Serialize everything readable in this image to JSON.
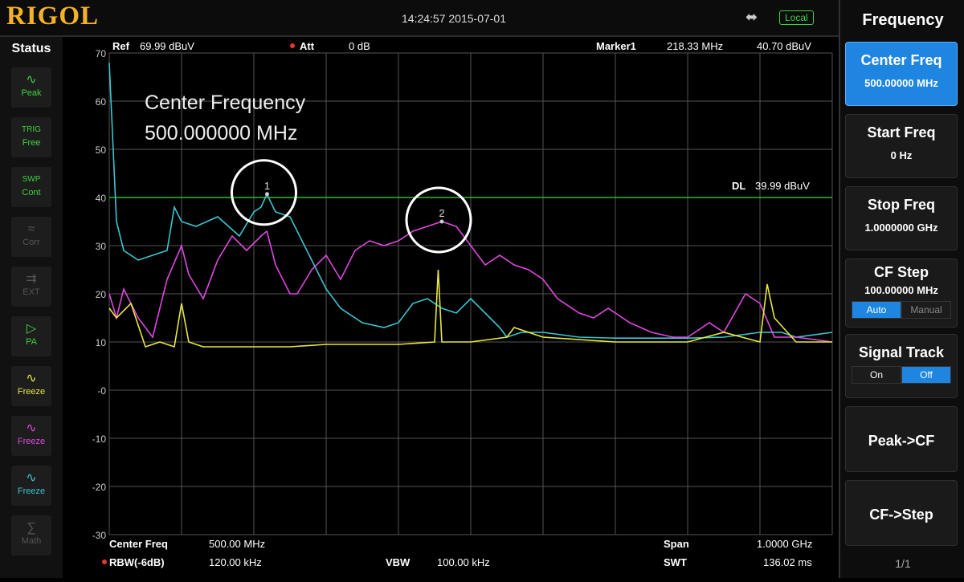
{
  "header": {
    "logo": "RIGOL",
    "datetime": "14:24:57 2015-07-01",
    "local_badge": "Local",
    "usb_icon": "usb-icon"
  },
  "status": {
    "title": "Status",
    "items": [
      {
        "icon": "peak-trace-icon",
        "label": "Peak",
        "color": "#3fd23f"
      },
      {
        "icon": "trig-icon",
        "top": "TRIG",
        "label": "Free",
        "color": "#3fd23f"
      },
      {
        "icon": "sweep-icon",
        "top": "SWP",
        "label": "Cont",
        "color": "#3fd23f"
      },
      {
        "icon": "corr-icon",
        "label": "Corr",
        "color": "#555555"
      },
      {
        "icon": "ext-icon",
        "label": "EXT",
        "color": "#555555"
      },
      {
        "icon": "preamp-icon",
        "label": "PA",
        "color": "#3fd23f"
      },
      {
        "icon": "trace-freeze-icon",
        "label": "Freeze",
        "color": "#e8e83c"
      },
      {
        "icon": "trace-freeze-icon",
        "label": "Freeze",
        "color": "#e048e0"
      },
      {
        "icon": "trace-freeze-icon",
        "label": "Freeze",
        "color": "#39c7d1"
      },
      {
        "icon": "math-icon",
        "label": "Math",
        "color": "#555555"
      }
    ]
  },
  "topinfo": {
    "ref_label": "Ref",
    "ref_value": "69.99 dBuV",
    "att_label": "Att",
    "att_value": "0 dB",
    "marker_label": "Marker1",
    "marker_freq": "218.33 MHz",
    "marker_level": "40.70 dBuV"
  },
  "overlay": {
    "line1": "Center Frequency",
    "line2": "500.000000 MHz"
  },
  "display_line": {
    "label": "DL",
    "value": "39.99 dBuV",
    "level": 39.99,
    "color": "#2fb82f"
  },
  "bottom": {
    "center_label": "Center Freq",
    "center_value": "500.00 MHz",
    "span_label": "Span",
    "span_value": "1.0000 GHz",
    "rbw_label": "RBW(-6dB)",
    "rbw_value": "120.00 kHz",
    "vbw_label": "VBW",
    "vbw_value": "100.00 kHz",
    "swt_label": "SWT",
    "swt_value": "136.02 ms"
  },
  "menu": {
    "title": "Frequency",
    "center_freq": {
      "label": "Center Freq",
      "value": "500.00000 MHz"
    },
    "start_freq": {
      "label": "Start Freq",
      "value": "0 Hz"
    },
    "stop_freq": {
      "label": "Stop Freq",
      "value": "1.0000000 GHz"
    },
    "cf_step": {
      "label": "CF Step",
      "value": "100.00000 MHz",
      "auto": "Auto",
      "manual": "Manual"
    },
    "signal_track": {
      "label": "Signal Track",
      "on": "On",
      "off": "Off"
    },
    "peak_cf": "Peak->CF",
    "cf_step_btn": "CF->Step",
    "page": "1/1"
  },
  "chart_data": {
    "type": "line",
    "title": "",
    "xlabel": "",
    "ylabel": "",
    "xlim": [
      0,
      1000
    ],
    "ylim": [
      -30,
      70
    ],
    "yticks": [
      "70",
      "60",
      "50",
      "40",
      "30",
      "20",
      "10",
      "-0",
      "-10",
      "-20",
      "-30"
    ],
    "markers": [
      {
        "label": "1",
        "x": 218.33,
        "y": 40.7
      },
      {
        "label": "2",
        "x": 460,
        "y": 35
      }
    ],
    "series": [
      {
        "color": "#39c7d1",
        "x": [
          0,
          10,
          20,
          40,
          60,
          80,
          90,
          100,
          120,
          150,
          180,
          200,
          210,
          218,
          230,
          250,
          260,
          280,
          300,
          320,
          350,
          380,
          400,
          420,
          440,
          460,
          480,
          500,
          520,
          540,
          550,
          570,
          600,
          650,
          700,
          750,
          800,
          850,
          900,
          930,
          950,
          1000
        ],
        "y": [
          68,
          35,
          29,
          27,
          28,
          29,
          38,
          35,
          34,
          36,
          32,
          37,
          38,
          40.7,
          37,
          36,
          33,
          27,
          21,
          17,
          14,
          13,
          14,
          18,
          19,
          17,
          16,
          19,
          16,
          13,
          11,
          12,
          12,
          11,
          10.8,
          10.8,
          10.8,
          11,
          12,
          12,
          11,
          12
        ]
      },
      {
        "color": "#e048e0",
        "x": [
          0,
          10,
          20,
          40,
          60,
          80,
          100,
          110,
          130,
          150,
          170,
          190,
          210,
          218,
          230,
          250,
          260,
          280,
          300,
          320,
          340,
          360,
          380,
          400,
          420,
          440,
          460,
          480,
          500,
          520,
          540,
          560,
          580,
          600,
          620,
          650,
          670,
          690,
          720,
          750,
          780,
          800,
          830,
          850,
          880,
          900,
          920,
          950,
          1000
        ],
        "y": [
          20,
          15,
          21,
          15,
          11,
          23,
          30,
          24,
          19,
          27,
          32,
          29,
          32,
          33,
          26,
          20,
          20,
          25,
          28,
          23,
          29,
          31,
          30,
          31,
          33,
          34,
          35,
          34,
          30,
          26,
          28,
          26,
          25,
          23,
          19,
          16,
          15,
          17,
          14,
          12,
          11,
          11,
          14,
          12,
          20,
          18,
          11,
          11,
          10
        ]
      },
      {
        "color": "#e8e83c",
        "x": [
          0,
          10,
          30,
          50,
          70,
          90,
          100,
          110,
          130,
          150,
          170,
          200,
          250,
          300,
          400,
          450,
          455,
          460,
          500,
          550,
          560,
          600,
          700,
          750,
          800,
          850,
          900,
          910,
          920,
          950,
          1000
        ],
        "y": [
          17,
          15,
          18,
          9,
          10,
          9,
          18,
          10,
          9,
          9,
          9,
          9,
          9,
          9.5,
          9.5,
          10,
          25,
          10,
          10,
          11,
          13,
          11,
          10,
          10,
          10,
          12,
          10,
          22,
          15,
          10,
          10
        ]
      }
    ]
  }
}
